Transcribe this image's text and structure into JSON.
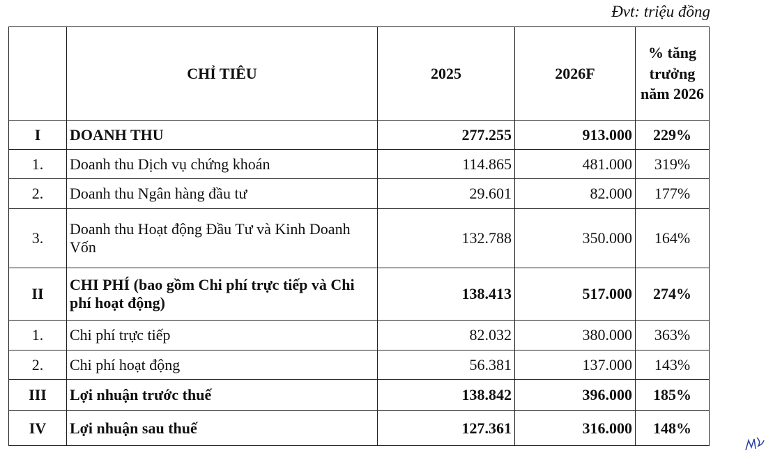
{
  "unit_label": "Đvt: triệu đồng",
  "table": {
    "headers": [
      "",
      "CHỈ TIÊU",
      "2025",
      "2026F",
      "% tăng trưởng năm 2026"
    ],
    "rows": [
      {
        "no": "I",
        "label": "DOANH THU",
        "v2025": "277.255",
        "v2026": "913.000",
        "growth": "229%",
        "bold": true,
        "h": 42
      },
      {
        "no": "1.",
        "label": "Doanh thu Dịch vụ chứng khoán",
        "v2025": "114.865",
        "v2026": "481.000",
        "growth": "319%",
        "bold": false,
        "h": 42
      },
      {
        "no": "2.",
        "label": "Doanh thu Ngân hàng đầu tư",
        "v2025": "29.601",
        "v2026": "82.000",
        "growth": "177%",
        "bold": false,
        "h": 43
      },
      {
        "no": "3.",
        "label": "Doanh thu Hoạt động Đầu Tư và Kinh Doanh Vốn",
        "v2025": "132.788",
        "v2026": "350.000",
        "growth": "164%",
        "bold": false,
        "h": 85
      },
      {
        "no": "II",
        "label": "CHI PHÍ (bao gồm Chi phí trực tiếp và Chi phí hoạt động)",
        "v2025": "138.413",
        "v2026": "517.000",
        "growth": "274%",
        "bold": true,
        "h": 75
      },
      {
        "no": "1.",
        "label": "Chi phí trực tiếp",
        "v2025": "82.032",
        "v2026": "380.000",
        "growth": "363%",
        "bold": false,
        "h": 43
      },
      {
        "no": "2.",
        "label": "Chi phí hoạt động",
        "v2025": "56.381",
        "v2026": "137.000",
        "growth": "143%",
        "bold": false,
        "h": 42
      },
      {
        "no": "III",
        "label": "Lợi nhuận trước thuế",
        "v2025": "138.842",
        "v2026": "396.000",
        "growth": "185%",
        "bold": true,
        "h": 45
      },
      {
        "no": "IV",
        "label": "Lợi nhuận sau thuế",
        "v2025": "127.361",
        "v2026": "316.000",
        "growth": "148%",
        "bold": true,
        "h": 50
      }
    ]
  },
  "signature_text": "initials"
}
